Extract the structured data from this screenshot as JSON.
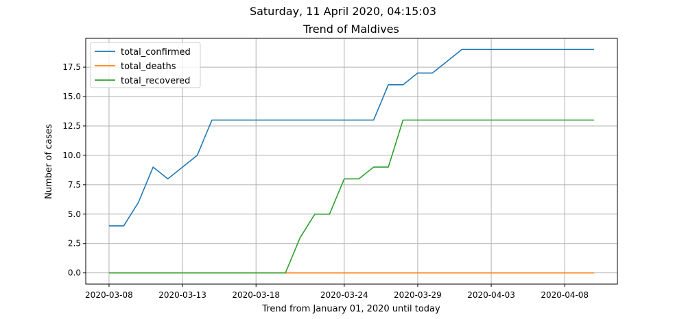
{
  "chart_data": {
    "type": "line",
    "suptitle": "Saturday, 11 April 2020, 04:15:03",
    "title": "Trend of Maldives",
    "xlabel": "Trend from January 01, 2020 until today",
    "ylabel": "Number of cases",
    "x_dates": [
      "2020-03-08",
      "2020-03-09",
      "2020-03-10",
      "2020-03-11",
      "2020-03-12",
      "2020-03-13",
      "2020-03-14",
      "2020-03-15",
      "2020-03-16",
      "2020-03-17",
      "2020-03-18",
      "2020-03-19",
      "2020-03-20",
      "2020-03-21",
      "2020-03-22",
      "2020-03-23",
      "2020-03-24",
      "2020-03-25",
      "2020-03-26",
      "2020-03-27",
      "2020-03-28",
      "2020-03-29",
      "2020-03-30",
      "2020-03-31",
      "2020-04-01",
      "2020-04-02",
      "2020-04-03",
      "2020-04-04",
      "2020-04-05",
      "2020-04-06",
      "2020-04-07",
      "2020-04-08",
      "2020-04-09",
      "2020-04-10"
    ],
    "x_tick_labels": [
      "2020-03-08",
      "2020-03-13",
      "2020-03-18",
      "2020-03-24",
      "2020-03-29",
      "2020-04-03",
      "2020-04-08"
    ],
    "y_ticks": [
      0.0,
      2.5,
      5.0,
      7.5,
      10.0,
      12.5,
      15.0,
      17.5
    ],
    "y_tick_labels": [
      "0.0",
      "2.5",
      "5.0",
      "7.5",
      "10.0",
      "12.5",
      "15.0",
      "17.5"
    ],
    "ylim": [
      -0.95,
      19.95
    ],
    "xlim": [
      "2020-03-06T10:00",
      "2020-04-11T14:00"
    ],
    "grid": true,
    "legend_position": "upper-left",
    "series": [
      {
        "name": "total_confirmed",
        "color": "#1f77b4",
        "values": [
          4,
          4,
          6,
          9,
          8,
          9,
          10,
          13,
          13,
          13,
          13,
          13,
          13,
          13,
          13,
          13,
          13,
          13,
          13,
          16,
          16,
          17,
          17,
          18,
          19,
          19,
          19,
          19,
          19,
          19,
          19,
          19,
          19,
          19
        ]
      },
      {
        "name": "total_deaths",
        "color": "#ff7f0e",
        "values": [
          0,
          0,
          0,
          0,
          0,
          0,
          0,
          0,
          0,
          0,
          0,
          0,
          0,
          0,
          0,
          0,
          0,
          0,
          0,
          0,
          0,
          0,
          0,
          0,
          0,
          0,
          0,
          0,
          0,
          0,
          0,
          0,
          0,
          0
        ]
      },
      {
        "name": "total_recovered",
        "color": "#2ca02c",
        "values": [
          0,
          0,
          0,
          0,
          0,
          0,
          0,
          0,
          0,
          0,
          0,
          0,
          0,
          3,
          5,
          5,
          8,
          8,
          9,
          9,
          13,
          13,
          13,
          13,
          13,
          13,
          13,
          13,
          13,
          13,
          13,
          13,
          13,
          13
        ]
      }
    ]
  }
}
